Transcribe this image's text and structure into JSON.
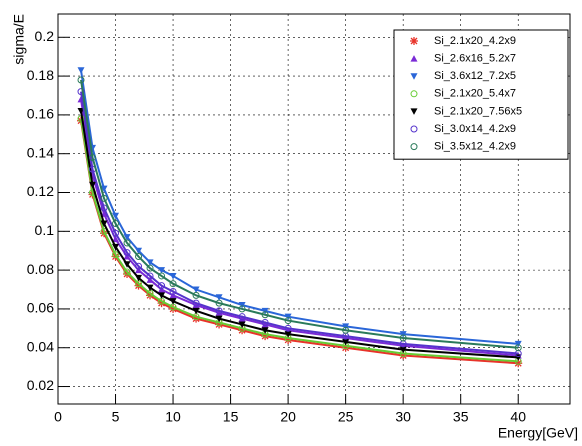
{
  "chart_data": {
    "type": "scatter",
    "xlabel": "Energy[GeV]",
    "ylabel": "sigma/E",
    "x": [
      2,
      3,
      4,
      5,
      6,
      7,
      8,
      9,
      10,
      12,
      14,
      16,
      18,
      20,
      25,
      30,
      40
    ],
    "xlim": [
      0,
      44.5
    ],
    "ylim": [
      0.011,
      0.212
    ],
    "xticks": [
      0,
      5,
      10,
      15,
      20,
      25,
      30,
      35,
      40
    ],
    "yticks": [
      0.02,
      0.04,
      0.06,
      0.08,
      0.1,
      0.12,
      0.14,
      0.16,
      0.18,
      0.2
    ],
    "grid": true,
    "legend": "upper right",
    "series": [
      {
        "name": "Si_2.1x20_4.2x9",
        "color": "#e8332a",
        "marker": "star",
        "values": [
          0.157,
          0.119,
          0.099,
          0.087,
          0.078,
          0.072,
          0.067,
          0.063,
          0.06,
          0.055,
          0.052,
          0.049,
          0.046,
          0.044,
          0.04,
          0.036,
          0.032
        ]
      },
      {
        "name": "Si_2.6x16_5.2x7",
        "color": "#7a2ad6",
        "marker": "triangle",
        "values": [
          0.168,
          0.129,
          0.109,
          0.096,
          0.087,
          0.08,
          0.075,
          0.07,
          0.067,
          0.062,
          0.058,
          0.055,
          0.052,
          0.049,
          0.045,
          0.041,
          0.036
        ]
      },
      {
        "name": "Si_3.6x12_7.2x5",
        "color": "#2a66d8",
        "marker": "triangle-down",
        "values": [
          0.183,
          0.143,
          0.122,
          0.108,
          0.097,
          0.09,
          0.084,
          0.08,
          0.077,
          0.07,
          0.066,
          0.062,
          0.059,
          0.056,
          0.051,
          0.047,
          0.042
        ]
      },
      {
        "name": "Si_2.1x20_5.4x7",
        "color": "#66cc33",
        "marker": "circle-open",
        "values": [
          0.158,
          0.12,
          0.1,
          0.088,
          0.079,
          0.073,
          0.068,
          0.064,
          0.061,
          0.056,
          0.053,
          0.05,
          0.047,
          0.045,
          0.041,
          0.037,
          0.033
        ]
      },
      {
        "name": "Si_2.1x20_7.56x5",
        "color": "#000000",
        "marker": "triangle-down",
        "values": [
          0.162,
          0.124,
          0.104,
          0.092,
          0.083,
          0.076,
          0.071,
          0.067,
          0.064,
          0.059,
          0.055,
          0.052,
          0.049,
          0.047,
          0.043,
          0.039,
          0.035
        ]
      },
      {
        "name": "Si_3.0x14_4.2x9",
        "color": "#5533cc",
        "marker": "circle-open",
        "values": [
          0.172,
          0.132,
          0.112,
          0.099,
          0.089,
          0.082,
          0.077,
          0.072,
          0.069,
          0.063,
          0.059,
          0.056,
          0.053,
          0.05,
          0.046,
          0.042,
          0.037
        ]
      },
      {
        "name": "Si_3.5x12_4.2x9",
        "color": "#2a7a5a",
        "marker": "circle-open",
        "values": [
          0.178,
          0.138,
          0.117,
          0.104,
          0.094,
          0.087,
          0.081,
          0.077,
          0.073,
          0.067,
          0.063,
          0.06,
          0.057,
          0.054,
          0.049,
          0.045,
          0.04
        ]
      }
    ]
  }
}
